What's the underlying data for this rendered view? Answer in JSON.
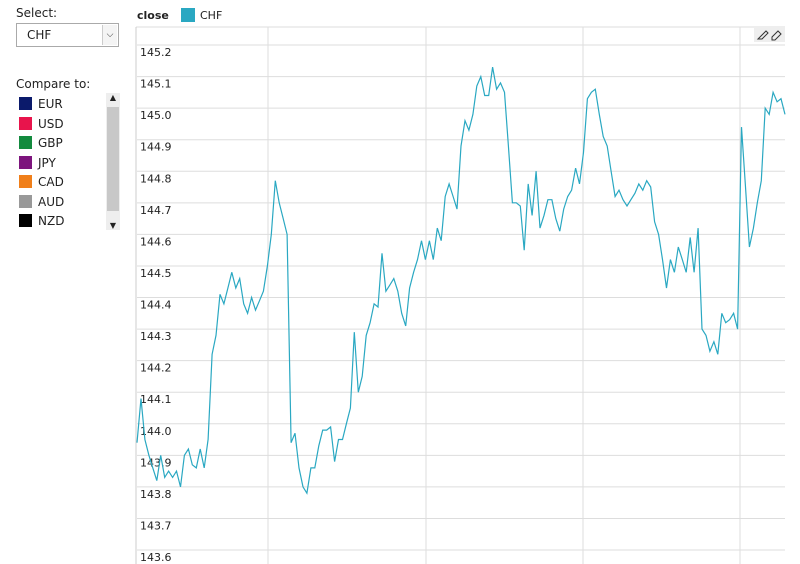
{
  "sidebar": {
    "select_label": "Select:",
    "selected": "CHF",
    "compare_label": "Compare to:",
    "compare": [
      {
        "name": "EUR",
        "color": "#0b1a6b"
      },
      {
        "name": "USD",
        "color": "#e8144c"
      },
      {
        "name": "GBP",
        "color": "#138a3e"
      },
      {
        "name": "JPY",
        "color": "#7d157d"
      },
      {
        "name": "CAD",
        "color": "#f07f1a"
      },
      {
        "name": "AUD",
        "color": "#999999"
      },
      {
        "name": "NZD",
        "color": "#000000"
      }
    ]
  },
  "chart_data": {
    "type": "line",
    "title": "close",
    "series": [
      {
        "name": "CHF",
        "color": "#2aa8c2",
        "values": [
          143.94,
          144.08,
          143.95,
          143.9,
          143.86,
          143.82,
          143.9,
          143.83,
          143.85,
          143.83,
          143.85,
          143.8,
          143.9,
          143.92,
          143.87,
          143.86,
          143.92,
          143.86,
          143.95,
          144.22,
          144.28,
          144.41,
          144.38,
          144.43,
          144.48,
          144.43,
          144.46,
          144.38,
          144.35,
          144.4,
          144.36,
          144.39,
          144.42,
          144.5,
          144.6,
          144.77,
          144.7,
          144.65,
          144.6,
          143.94,
          143.97,
          143.86,
          143.8,
          143.78,
          143.86,
          143.86,
          143.93,
          143.98,
          143.98,
          143.99,
          143.88,
          143.95,
          143.95,
          144.0,
          144.05,
          144.29,
          144.1,
          144.15,
          144.28,
          144.32,
          144.38,
          144.37,
          144.54,
          144.42,
          144.44,
          144.46,
          144.42,
          144.35,
          144.31,
          144.43,
          144.48,
          144.52,
          144.58,
          144.52,
          144.58,
          144.52,
          144.62,
          144.58,
          144.72,
          144.76,
          144.72,
          144.68,
          144.88,
          144.96,
          144.93,
          144.98,
          145.07,
          145.1,
          145.04,
          145.04,
          145.13,
          145.06,
          145.08,
          145.05,
          144.88,
          144.7,
          144.7,
          144.69,
          144.55,
          144.76,
          144.66,
          144.8,
          144.62,
          144.66,
          144.71,
          144.71,
          144.65,
          144.61,
          144.68,
          144.72,
          144.74,
          144.81,
          144.76,
          144.86,
          145.03,
          145.05,
          145.06,
          144.98,
          144.91,
          144.88,
          144.8,
          144.72,
          144.74,
          144.71,
          144.69,
          144.71,
          144.73,
          144.76,
          144.74,
          144.77,
          144.75,
          144.64,
          144.6,
          144.52,
          144.43,
          144.52,
          144.48,
          144.56,
          144.52,
          144.48,
          144.59,
          144.48,
          144.62,
          144.3,
          144.28,
          144.23,
          144.26,
          144.22,
          144.35,
          144.32,
          144.33,
          144.35,
          144.3,
          144.94,
          144.75,
          144.56,
          144.62,
          144.7,
          144.77,
          145.0,
          144.98,
          145.05,
          145.02,
          145.03,
          144.98
        ]
      }
    ],
    "ylim": [
      143.6,
      145.2
    ],
    "yticks": [
      143.6,
      143.7,
      143.8,
      143.9,
      {
        "value": 144,
        "label": "144.0"
      },
      144.1,
      144.2,
      144.3,
      144.4,
      144.5,
      144.6,
      144.7,
      144.8,
      144.9,
      {
        "value": 145,
        "label": "145.0"
      },
      145.1,
      145.2
    ],
    "grid": true
  }
}
